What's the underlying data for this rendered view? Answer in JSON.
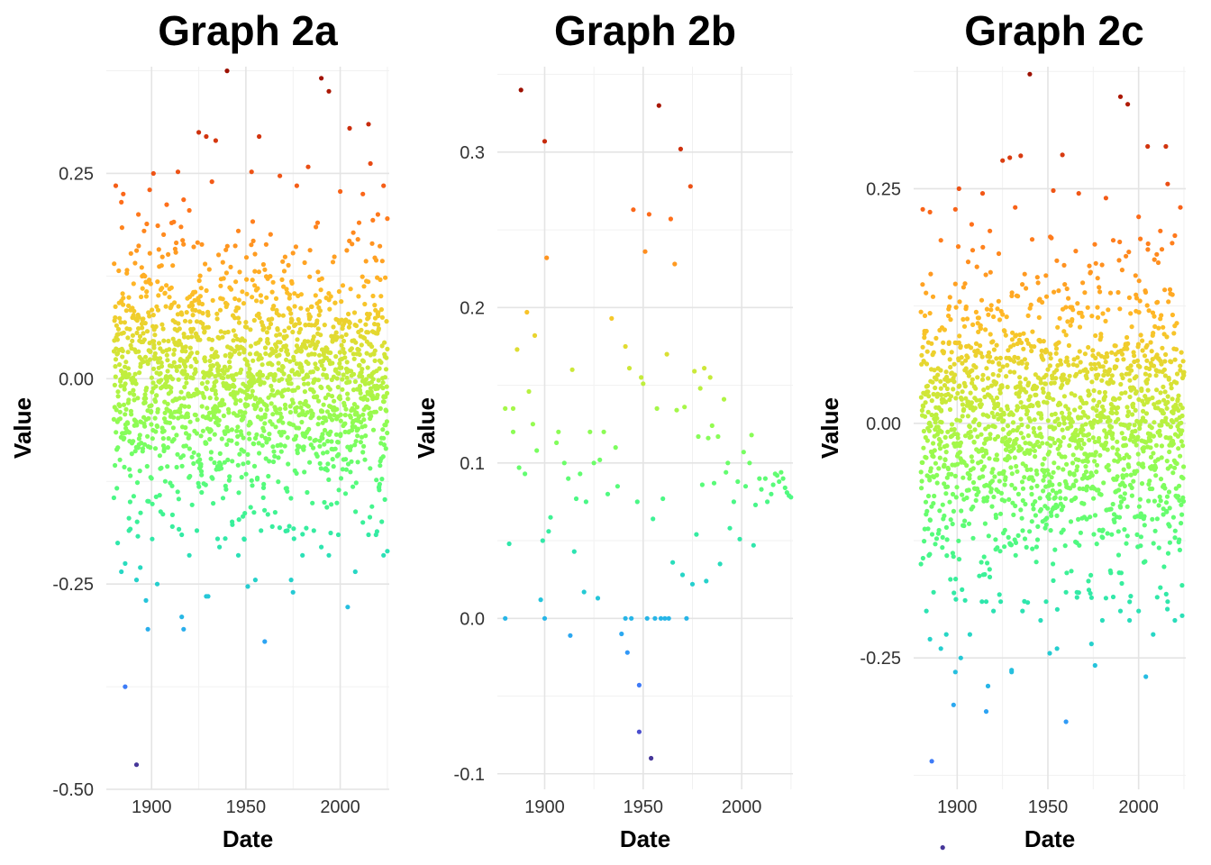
{
  "chart_data": [
    {
      "type": "scatter",
      "title": "Graph 2a",
      "xlabel": "Date",
      "ylabel": "Value",
      "xlim": [
        1876,
        2026
      ],
      "ylim": [
        -0.5,
        0.38
      ],
      "xticks": [
        1900,
        1950,
        2000
      ],
      "yticks": [
        -0.5,
        -0.25,
        0.0,
        0.25
      ],
      "ytick_labels": [
        "-0.50",
        "-0.25",
        "0.00",
        "0.25"
      ],
      "grid": true,
      "legend": "none",
      "point_count": 1720,
      "color_scale": "turbo, mapped to value",
      "points": [
        [
          1881,
          0.235
        ],
        [
          1884,
          0.215
        ],
        [
          1885,
          0.225
        ],
        [
          1893,
          0.2
        ],
        [
          1896,
          0.18
        ],
        [
          1899,
          0.23
        ],
        [
          1901,
          0.25
        ],
        [
          1908,
          0.212
        ],
        [
          1914,
          0.252
        ],
        [
          1917,
          0.218
        ],
        [
          1920,
          0.205
        ],
        [
          1925,
          0.3
        ],
        [
          1929,
          0.295
        ],
        [
          1932,
          0.24
        ],
        [
          1934,
          0.29
        ],
        [
          1940,
          0.375
        ],
        [
          1946,
          0.18
        ],
        [
          1953,
          0.252
        ],
        [
          1957,
          0.295
        ],
        [
          1968,
          0.247
        ],
        [
          1977,
          0.235
        ],
        [
          1983,
          0.258
        ],
        [
          1988,
          0.19
        ],
        [
          1990,
          0.366
        ],
        [
          1994,
          0.35
        ],
        [
          2000,
          0.228
        ],
        [
          2005,
          0.305
        ],
        [
          2010,
          0.19
        ],
        [
          2012,
          0.225
        ],
        [
          2015,
          0.31
        ],
        [
          2016,
          0.262
        ],
        [
          2020,
          0.2
        ],
        [
          2023,
          0.235
        ],
        [
          2025,
          0.195
        ],
        [
          1880,
          -0.145
        ],
        [
          1882,
          -0.2
        ],
        [
          1884,
          -0.235
        ],
        [
          1886,
          -0.225
        ],
        [
          1888,
          -0.185
        ],
        [
          1892,
          -0.245
        ],
        [
          1894,
          -0.23
        ],
        [
          1897,
          -0.27
        ],
        [
          1903,
          -0.25
        ],
        [
          1906,
          -0.165
        ],
        [
          1911,
          -0.18
        ],
        [
          1916,
          -0.19
        ],
        [
          1920,
          -0.215
        ],
        [
          1924,
          -0.185
        ],
        [
          1929,
          -0.265
        ],
        [
          1935,
          -0.195
        ],
        [
          1936,
          -0.205
        ],
        [
          1946,
          -0.215
        ],
        [
          1949,
          -0.195
        ],
        [
          1955,
          -0.245
        ],
        [
          1958,
          -0.185
        ],
        [
          1964,
          -0.18
        ],
        [
          1972,
          -0.185
        ],
        [
          1974,
          -0.245
        ],
        [
          1980,
          -0.215
        ],
        [
          1986,
          -0.185
        ],
        [
          1990,
          -0.205
        ],
        [
          1994,
          -0.215
        ],
        [
          1999,
          -0.19
        ],
        [
          2008,
          -0.235
        ],
        [
          2012,
          -0.175
        ],
        [
          2015,
          -0.19
        ],
        [
          2019,
          -0.19
        ],
        [
          2023,
          -0.215
        ],
        [
          2025,
          -0.21
        ],
        [
          1886,
          -0.375
        ],
        [
          1892,
          -0.47
        ],
        [
          1898,
          -0.305
        ],
        [
          1916,
          -0.29
        ],
        [
          1917,
          -0.305
        ],
        [
          1930,
          -0.265
        ],
        [
          1960,
          -0.32
        ],
        [
          1951,
          -0.253
        ],
        [
          1975,
          -0.26
        ],
        [
          2004,
          -0.278
        ]
      ]
    },
    {
      "type": "scatter",
      "title": "Graph 2b",
      "xlabel": "Date",
      "ylabel": "Value",
      "xlim": [
        1876,
        2026
      ],
      "ylim": [
        -0.11,
        0.355
      ],
      "xticks": [
        1900,
        1950,
        2000
      ],
      "yticks": [
        -0.1,
        0.0,
        0.1,
        0.2,
        0.3
      ],
      "ytick_labels": [
        "-0.1",
        "0.0",
        "0.1",
        "0.2",
        "0.3"
      ],
      "grid": true,
      "legend": "none",
      "color_scale": "turbo, mapped to value",
      "points": [
        [
          1880,
          0.0
        ],
        [
          1882,
          0.048
        ],
        [
          1880,
          0.135
        ],
        [
          1884,
          0.135
        ],
        [
          1886,
          0.173
        ],
        [
          1888,
          0.34
        ],
        [
          1884,
          0.12
        ],
        [
          1887,
          0.097
        ],
        [
          1890,
          0.093
        ],
        [
          1891,
          0.197
        ],
        [
          1892,
          0.146
        ],
        [
          1894,
          0.125
        ],
        [
          1895,
          0.182
        ],
        [
          1896,
          0.108
        ],
        [
          1898,
          0.012
        ],
        [
          1899,
          0.05
        ],
        [
          1900,
          0.307
        ],
        [
          1901,
          0.232
        ],
        [
          1900,
          0.0
        ],
        [
          1902,
          0.056
        ],
        [
          1903,
          0.065
        ],
        [
          1906,
          0.113
        ],
        [
          1907,
          0.12
        ],
        [
          1910,
          0.1
        ],
        [
          1912,
          0.09
        ],
        [
          1913,
          -0.011
        ],
        [
          1914,
          0.16
        ],
        [
          1915,
          0.043
        ],
        [
          1916,
          0.077
        ],
        [
          1918,
          0.093
        ],
        [
          1920,
          0.017
        ],
        [
          1921,
          0.075
        ],
        [
          1923,
          0.12
        ],
        [
          1925,
          0.1
        ],
        [
          1927,
          0.013
        ],
        [
          1928,
          0.102
        ],
        [
          1930,
          0.12
        ],
        [
          1932,
          0.08
        ],
        [
          1934,
          0.193
        ],
        [
          1936,
          0.11
        ],
        [
          1937,
          0.085
        ],
        [
          1939,
          -0.01
        ],
        [
          1941,
          0.0
        ],
        [
          1941,
          0.175
        ],
        [
          1942,
          -0.022
        ],
        [
          1943,
          0.161
        ],
        [
          1944,
          0.0
        ],
        [
          1945,
          0.263
        ],
        [
          1947,
          0.075
        ],
        [
          1948,
          -0.043
        ],
        [
          1948,
          -0.073
        ],
        [
          1949,
          0.155
        ],
        [
          1950,
          0.151
        ],
        [
          1951,
          0.236
        ],
        [
          1952,
          0.0
        ],
        [
          1953,
          0.26
        ],
        [
          1954,
          -0.09
        ],
        [
          1955,
          0.064
        ],
        [
          1956,
          0.0
        ],
        [
          1957,
          0.135
        ],
        [
          1958,
          0.33
        ],
        [
          1959,
          0.0
        ],
        [
          1960,
          0.077
        ],
        [
          1961,
          0.0
        ],
        [
          1962,
          0.17
        ],
        [
          1963,
          0.0
        ],
        [
          1964,
          0.257
        ],
        [
          1965,
          0.036
        ],
        [
          1966,
          0.228
        ],
        [
          1967,
          0.134
        ],
        [
          1969,
          0.302
        ],
        [
          1970,
          0.028
        ],
        [
          1971,
          0.136
        ],
        [
          1972,
          0.0
        ],
        [
          1974,
          0.278
        ],
        [
          1975,
          0.022
        ],
        [
          1976,
          0.159
        ],
        [
          1977,
          0.054
        ],
        [
          1978,
          0.117
        ],
        [
          1979,
          0.148
        ],
        [
          1980,
          0.086
        ],
        [
          1981,
          0.161
        ],
        [
          1982,
          0.024
        ],
        [
          1983,
          0.116
        ],
        [
          1984,
          0.155
        ],
        [
          1985,
          0.124
        ],
        [
          1986,
          0.087
        ],
        [
          1988,
          0.117
        ],
        [
          1989,
          0.035
        ],
        [
          1991,
          0.141
        ],
        [
          1992,
          0.094
        ],
        [
          1993,
          0.1
        ],
        [
          1994,
          0.058
        ],
        [
          1996,
          0.075
        ],
        [
          1998,
          0.088
        ],
        [
          1999,
          0.051
        ],
        [
          2001,
          0.107
        ],
        [
          2002,
          0.085
        ],
        [
          2004,
          0.1
        ],
        [
          2005,
          0.118
        ],
        [
          2006,
          0.047
        ],
        [
          2007,
          0.073
        ],
        [
          2009,
          0.09
        ],
        [
          2010,
          0.083
        ],
        [
          2012,
          0.09
        ],
        [
          2013,
          0.075
        ],
        [
          2015,
          0.08
        ],
        [
          2016,
          0.086
        ],
        [
          2017,
          0.093
        ],
        [
          2018,
          0.092
        ],
        [
          2019,
          0.088
        ],
        [
          2020,
          0.094
        ],
        [
          2021,
          0.09
        ],
        [
          2022,
          0.084
        ],
        [
          2023,
          0.081
        ],
        [
          2024,
          0.079
        ],
        [
          2025,
          0.078
        ]
      ]
    },
    {
      "type": "scatter",
      "title": "Graph 2c",
      "xlabel": "Date",
      "ylabel": "Value",
      "xlim": [
        1876,
        2026
      ],
      "ylim": [
        -0.39,
        0.38
      ],
      "xticks": [
        1900,
        1950,
        2000
      ],
      "yticks": [
        -0.25,
        0.0,
        0.25
      ],
      "ytick_labels": [
        "-0.25",
        "0.00",
        "0.25"
      ],
      "grid": true,
      "legend": "none",
      "point_count": 1720,
      "color_scale": "turbo, mapped to value",
      "points": [
        [
          1881,
          0.228
        ],
        [
          1885,
          0.225
        ],
        [
          1891,
          0.195
        ],
        [
          1899,
          0.228
        ],
        [
          1901,
          0.25
        ],
        [
          1908,
          0.212
        ],
        [
          1914,
          0.245
        ],
        [
          1918,
          0.205
        ],
        [
          1925,
          0.28
        ],
        [
          1929,
          0.283
        ],
        [
          1932,
          0.23
        ],
        [
          1935,
          0.285
        ],
        [
          1940,
          0.372
        ],
        [
          1953,
          0.248
        ],
        [
          1958,
          0.286
        ],
        [
          1967,
          0.245
        ],
        [
          1982,
          0.24
        ],
        [
          1986,
          0.195
        ],
        [
          1990,
          0.348
        ],
        [
          1994,
          0.34
        ],
        [
          2000,
          0.22
        ],
        [
          2005,
          0.295
        ],
        [
          2010,
          0.18
        ],
        [
          2012,
          0.205
        ],
        [
          2015,
          0.295
        ],
        [
          2016,
          0.255
        ],
        [
          2020,
          0.2
        ],
        [
          2023,
          0.23
        ],
        [
          1880,
          -0.15
        ],
        [
          1883,
          -0.2
        ],
        [
          1885,
          -0.23
        ],
        [
          1887,
          -0.18
        ],
        [
          1891,
          -0.24
        ],
        [
          1894,
          -0.225
        ],
        [
          1899,
          -0.265
        ],
        [
          1902,
          -0.25
        ],
        [
          1907,
          -0.225
        ],
        [
          1916,
          -0.19
        ],
        [
          1920,
          -0.2
        ],
        [
          1924,
          -0.19
        ],
        [
          1930,
          -0.265
        ],
        [
          1936,
          -0.2
        ],
        [
          1946,
          -0.21
        ],
        [
          1949,
          -0.19
        ],
        [
          1955,
          -0.24
        ],
        [
          1960,
          -0.18
        ],
        [
          1966,
          -0.18
        ],
        [
          1974,
          -0.235
        ],
        [
          1980,
          -0.21
        ],
        [
          1986,
          -0.185
        ],
        [
          1990,
          -0.2
        ],
        [
          1995,
          -0.21
        ],
        [
          2000,
          -0.2
        ],
        [
          2008,
          -0.225
        ],
        [
          2012,
          -0.175
        ],
        [
          2016,
          -0.19
        ],
        [
          2020,
          -0.21
        ],
        [
          2024,
          -0.205
        ],
        [
          1886,
          -0.36
        ],
        [
          1892,
          -0.452
        ],
        [
          1898,
          -0.3
        ],
        [
          1916,
          -0.307
        ],
        [
          1917,
          -0.28
        ],
        [
          1930,
          -0.263
        ],
        [
          1960,
          -0.318
        ],
        [
          1951,
          -0.245
        ],
        [
          1976,
          -0.258
        ],
        [
          2004,
          -0.27
        ]
      ]
    }
  ]
}
